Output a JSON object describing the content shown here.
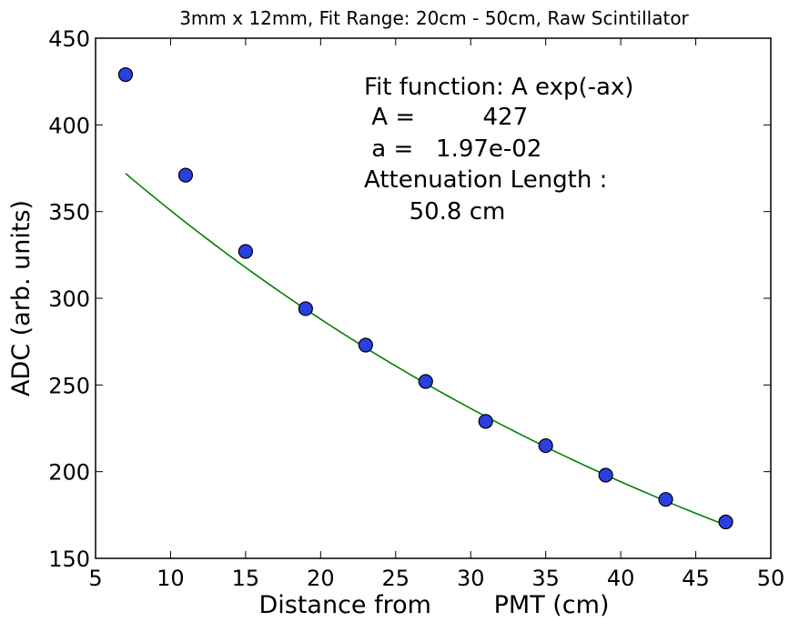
{
  "chart_data": {
    "type": "scatter",
    "title": "3mm x 12mm, Fit Range: 20cm - 50cm, Raw Scintillator",
    "xlabel": "Distance from        PMT (cm)",
    "ylabel": "ADC (arb. units)",
    "xlim": [
      5,
      50
    ],
    "ylim": [
      150,
      450
    ],
    "xticks": [
      "5",
      "10",
      "15",
      "20",
      "25",
      "30",
      "35",
      "40",
      "45",
      "50"
    ],
    "yticks": [
      "150",
      "200",
      "250",
      "300",
      "350",
      "400",
      "450"
    ],
    "grid": false,
    "series": [
      {
        "marker": "circle",
        "color": "#2a3fe0",
        "edge_color": "#000000",
        "x": [
          7,
          11,
          15,
          19,
          23,
          27,
          31,
          35,
          39,
          43,
          47
        ],
        "y": [
          429,
          371,
          327,
          294,
          273,
          252,
          229,
          215,
          198,
          184,
          171
        ]
      }
    ],
    "fit_curve": {
      "color": "#008000",
      "function": "A exp(-ax)",
      "A": 427,
      "a": 0.0197,
      "x_range": [
        7,
        47
      ]
    },
    "annotations": [
      "Fit function: A exp(-ax)",
      " A =         427",
      " a =   1.97e-02",
      "Attenuation Length :",
      "      50.8 cm"
    ]
  }
}
